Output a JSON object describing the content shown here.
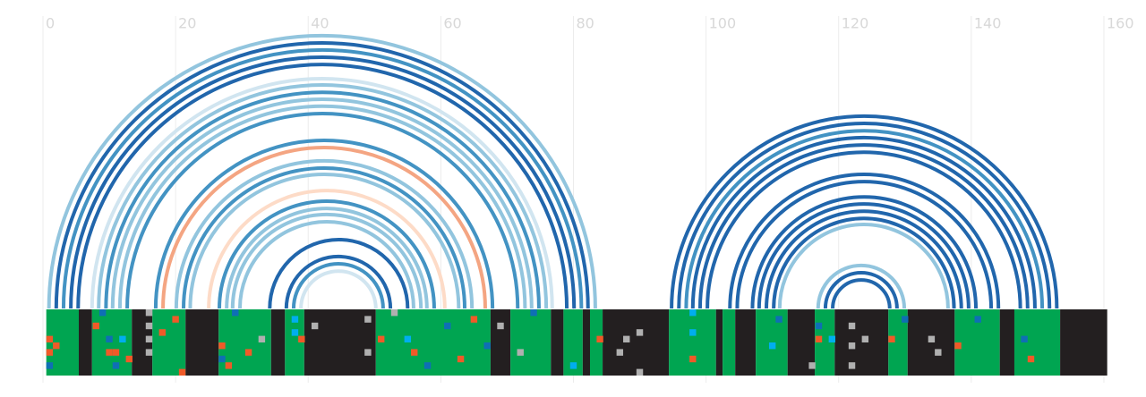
{
  "chart_data": {
    "type": "arc",
    "xlim": [
      -1,
      160.5
    ],
    "xticks": [
      0,
      20,
      40,
      60,
      80,
      100,
      120,
      140,
      160
    ],
    "grid": true,
    "arcs": [
      {
        "from": 0.9,
        "to": 83.3,
        "color": "#92c5de"
      },
      {
        "from": 2.0,
        "to": 82.2,
        "color": "#2166ac"
      },
      {
        "from": 3.1,
        "to": 81.2,
        "color": "#4393c3"
      },
      {
        "from": 4.2,
        "to": 80.1,
        "color": "#2166ac"
      },
      {
        "from": 5.3,
        "to": 79.0,
        "color": "#2166ac"
      },
      {
        "from": 7.4,
        "to": 76.8,
        "color": "#d1e5f0"
      },
      {
        "from": 8.4,
        "to": 75.9,
        "color": "#92c5de"
      },
      {
        "from": 9.5,
        "to": 74.8,
        "color": "#4393c3"
      },
      {
        "from": 10.5,
        "to": 73.7,
        "color": "#92c5de"
      },
      {
        "from": 11.6,
        "to": 72.7,
        "color": "#92c5de"
      },
      {
        "from": 12.7,
        "to": 71.6,
        "color": "#4393c3"
      },
      {
        "from": 17.0,
        "to": 67.8,
        "color": "#4393c3"
      },
      {
        "from": 18.1,
        "to": 66.7,
        "color": "#f4a582"
      },
      {
        "from": 20.1,
        "to": 64.7,
        "color": "#92c5de"
      },
      {
        "from": 21.2,
        "to": 63.6,
        "color": "#4393c3"
      },
      {
        "from": 22.2,
        "to": 62.7,
        "color": "#92c5de"
      },
      {
        "from": 25.0,
        "to": 60.6,
        "color": "#fddbc7"
      },
      {
        "from": 26.6,
        "to": 59.0,
        "color": "#4393c3"
      },
      {
        "from": 27.7,
        "to": 57.9,
        "color": "#92c5de"
      },
      {
        "from": 28.6,
        "to": 57.0,
        "color": "#92c5de"
      },
      {
        "from": 29.7,
        "to": 55.9,
        "color": "#92c5de"
      },
      {
        "from": 34.2,
        "to": 55.0,
        "color": "#2166ac"
      },
      {
        "from": 36.7,
        "to": 52.4,
        "color": "#2166ac"
      },
      {
        "from": 37.8,
        "to": 51.3,
        "color": "#4393c3"
      },
      {
        "from": 38.9,
        "to": 50.2,
        "color": "#d1e5f0"
      },
      {
        "from": 94.8,
        "to": 152.9,
        "color": "#2166ac"
      },
      {
        "from": 95.9,
        "to": 151.8,
        "color": "#2166ac"
      },
      {
        "from": 97.0,
        "to": 150.7,
        "color": "#4393c3"
      },
      {
        "from": 98.0,
        "to": 149.6,
        "color": "#2166ac"
      },
      {
        "from": 99.1,
        "to": 148.5,
        "color": "#2166ac"
      },
      {
        "from": 100.2,
        "to": 147.4,
        "color": "#2166ac"
      },
      {
        "from": 103.6,
        "to": 144.1,
        "color": "#2166ac"
      },
      {
        "from": 104.7,
        "to": 143.0,
        "color": "#2166ac"
      },
      {
        "from": 107.0,
        "to": 140.7,
        "color": "#2166ac"
      },
      {
        "from": 108.0,
        "to": 139.6,
        "color": "#2166ac"
      },
      {
        "from": 109.1,
        "to": 138.5,
        "color": "#2166ac"
      },
      {
        "from": 110.2,
        "to": 137.4,
        "color": "#2166ac"
      },
      {
        "from": 111.1,
        "to": 136.5,
        "color": "#92c5de"
      },
      {
        "from": 116.9,
        "to": 129.9,
        "color": "#92c5de"
      },
      {
        "from": 118.0,
        "to": 128.8,
        "color": "#2166ac"
      },
      {
        "from": 119.1,
        "to": 127.7,
        "color": "#2166ac"
      }
    ],
    "segments": [
      {
        "from": 0.5,
        "to": 5.4,
        "color": "#00a551"
      },
      {
        "from": 5.4,
        "to": 7.4,
        "color": "#231f20"
      },
      {
        "from": 7.4,
        "to": 13.4,
        "color": "#00a551"
      },
      {
        "from": 13.4,
        "to": 16.5,
        "color": "#231f20"
      },
      {
        "from": 16.5,
        "to": 21.5,
        "color": "#00a551"
      },
      {
        "from": 21.5,
        "to": 26.5,
        "color": "#231f20"
      },
      {
        "from": 26.5,
        "to": 34.4,
        "color": "#00a551"
      },
      {
        "from": 34.4,
        "to": 36.5,
        "color": "#231f20"
      },
      {
        "from": 36.5,
        "to": 39.4,
        "color": "#00a551"
      },
      {
        "from": 39.4,
        "to": 50.2,
        "color": "#231f20"
      },
      {
        "from": 50.2,
        "to": 67.5,
        "color": "#00a551"
      },
      {
        "from": 67.5,
        "to": 70.5,
        "color": "#231f20"
      },
      {
        "from": 70.5,
        "to": 76.6,
        "color": "#00a551"
      },
      {
        "from": 76.6,
        "to": 78.5,
        "color": "#231f20"
      },
      {
        "from": 78.5,
        "to": 81.4,
        "color": "#00a551"
      },
      {
        "from": 81.4,
        "to": 82.5,
        "color": "#231f20"
      },
      {
        "from": 82.5,
        "to": 84.4,
        "color": "#00a551"
      },
      {
        "from": 84.4,
        "to": 94.4,
        "color": "#231f20"
      },
      {
        "from": 94.4,
        "to": 101.5,
        "color": "#00a551"
      },
      {
        "from": 101.5,
        "to": 102.5,
        "color": "#231f20"
      },
      {
        "from": 102.5,
        "to": 104.4,
        "color": "#00a551"
      },
      {
        "from": 104.4,
        "to": 107.5,
        "color": "#231f20"
      },
      {
        "from": 107.5,
        "to": 112.3,
        "color": "#00a551"
      },
      {
        "from": 112.3,
        "to": 116.4,
        "color": "#231f20"
      },
      {
        "from": 116.4,
        "to": 119.4,
        "color": "#00a551"
      },
      {
        "from": 119.4,
        "to": 127.5,
        "color": "#231f20"
      },
      {
        "from": 127.5,
        "to": 130.4,
        "color": "#00a551"
      },
      {
        "from": 130.4,
        "to": 137.5,
        "color": "#231f20"
      },
      {
        "from": 137.5,
        "to": 144.3,
        "color": "#00a551"
      },
      {
        "from": 144.3,
        "to": 146.5,
        "color": "#231f20"
      },
      {
        "from": 146.5,
        "to": 153.4,
        "color": "#00a551"
      },
      {
        "from": 153.4,
        "to": 160.5,
        "color": "#231f20"
      }
    ],
    "cells": [
      {
        "x": 0.5,
        "row": 4,
        "color": "#f05a28"
      },
      {
        "x": 0.5,
        "row": 6,
        "color": "#f05a28"
      },
      {
        "x": 0.5,
        "row": 8,
        "color": "#0f6fb5"
      },
      {
        "x": 1.5,
        "row": 5,
        "color": "#f05a28"
      },
      {
        "x": 7.5,
        "row": 2,
        "color": "#f05a28"
      },
      {
        "x": 8.5,
        "row": 0,
        "color": "#0f6fb5"
      },
      {
        "x": 9.5,
        "row": 4,
        "color": "#0f6fb5"
      },
      {
        "x": 9.5,
        "row": 6,
        "color": "#f05a28"
      },
      {
        "x": 10.5,
        "row": 6,
        "color": "#f05a28"
      },
      {
        "x": 10.5,
        "row": 8,
        "color": "#0f6fb5"
      },
      {
        "x": 11.5,
        "row": 4,
        "color": "#00aeef"
      },
      {
        "x": 12.5,
        "row": 7,
        "color": "#f05a28"
      },
      {
        "x": 15.5,
        "row": 0,
        "color": "#b0b0b0"
      },
      {
        "x": 15.5,
        "row": 2,
        "color": "#b0b0b0"
      },
      {
        "x": 15.5,
        "row": 4,
        "color": "#b0b0b0"
      },
      {
        "x": 15.5,
        "row": 6,
        "color": "#b0b0b0"
      },
      {
        "x": 17.5,
        "row": 3,
        "color": "#f05a28"
      },
      {
        "x": 19.5,
        "row": 1,
        "color": "#f05a28"
      },
      {
        "x": 20.5,
        "row": 9,
        "color": "#f05a28"
      },
      {
        "x": 26.5,
        "row": 5,
        "color": "#f05a28"
      },
      {
        "x": 26.5,
        "row": 7,
        "color": "#0f6fb5"
      },
      {
        "x": 27.5,
        "row": 8,
        "color": "#f05a28"
      },
      {
        "x": 28.5,
        "row": 0,
        "color": "#0f6fb5"
      },
      {
        "x": 30.5,
        "row": 6,
        "color": "#f05a28"
      },
      {
        "x": 32.5,
        "row": 4,
        "color": "#b0b0b0"
      },
      {
        "x": 37.5,
        "row": 1,
        "color": "#00aeef"
      },
      {
        "x": 37.5,
        "row": 3,
        "color": "#00aeef"
      },
      {
        "x": 38.5,
        "row": 4,
        "color": "#f05a28"
      },
      {
        "x": 40.5,
        "row": 2,
        "color": "#b0b0b0"
      },
      {
        "x": 48.5,
        "row": 1,
        "color": "#b0b0b0"
      },
      {
        "x": 48.5,
        "row": 6,
        "color": "#b0b0b0"
      },
      {
        "x": 50.5,
        "row": 4,
        "color": "#f05a28"
      },
      {
        "x": 52.5,
        "row": 0,
        "color": "#b0b0b0"
      },
      {
        "x": 54.5,
        "row": 4,
        "color": "#00aeef"
      },
      {
        "x": 55.5,
        "row": 6,
        "color": "#f05a28"
      },
      {
        "x": 57.5,
        "row": 8,
        "color": "#0f6fb5"
      },
      {
        "x": 60.5,
        "row": 2,
        "color": "#0f6fb5"
      },
      {
        "x": 62.5,
        "row": 7,
        "color": "#f05a28"
      },
      {
        "x": 64.5,
        "row": 1,
        "color": "#f05a28"
      },
      {
        "x": 66.5,
        "row": 5,
        "color": "#0f6fb5"
      },
      {
        "x": 68.5,
        "row": 2,
        "color": "#b0b0b0"
      },
      {
        "x": 71.5,
        "row": 6,
        "color": "#b0b0b0"
      },
      {
        "x": 73.5,
        "row": 0,
        "color": "#0f6fb5"
      },
      {
        "x": 79.5,
        "row": 8,
        "color": "#00aeef"
      },
      {
        "x": 83.5,
        "row": 4,
        "color": "#f05a28"
      },
      {
        "x": 87.5,
        "row": 4,
        "color": "#b0b0b0"
      },
      {
        "x": 89.5,
        "row": 3,
        "color": "#b0b0b0"
      },
      {
        "x": 86.5,
        "row": 6,
        "color": "#b0b0b0"
      },
      {
        "x": 89.5,
        "row": 9,
        "color": "#b0b0b0"
      },
      {
        "x": 97.5,
        "row": 0,
        "color": "#00aeef"
      },
      {
        "x": 97.5,
        "row": 3,
        "color": "#00aeef"
      },
      {
        "x": 97.5,
        "row": 7,
        "color": "#f05a28"
      },
      {
        "x": 110.5,
        "row": 1,
        "color": "#0f6fb5"
      },
      {
        "x": 109.5,
        "row": 5,
        "color": "#00aeef"
      },
      {
        "x": 115.5,
        "row": 8,
        "color": "#b0b0b0"
      },
      {
        "x": 116.5,
        "row": 2,
        "color": "#0f6fb5"
      },
      {
        "x": 116.5,
        "row": 4,
        "color": "#f05a28"
      },
      {
        "x": 118.5,
        "row": 4,
        "color": "#00aeef"
      },
      {
        "x": 121.5,
        "row": 2,
        "color": "#b0b0b0"
      },
      {
        "x": 121.5,
        "row": 5,
        "color": "#b0b0b0"
      },
      {
        "x": 121.5,
        "row": 8,
        "color": "#b0b0b0"
      },
      {
        "x": 123.5,
        "row": 4,
        "color": "#b0b0b0"
      },
      {
        "x": 127.5,
        "row": 4,
        "color": "#f05a28"
      },
      {
        "x": 129.5,
        "row": 1,
        "color": "#0f6fb5"
      },
      {
        "x": 133.5,
        "row": 4,
        "color": "#b0b0b0"
      },
      {
        "x": 134.5,
        "row": 6,
        "color": "#b0b0b0"
      },
      {
        "x": 137.5,
        "row": 5,
        "color": "#f05a28"
      },
      {
        "x": 140.5,
        "row": 1,
        "color": "#0f6fb5"
      },
      {
        "x": 147.5,
        "row": 4,
        "color": "#0f6fb5"
      },
      {
        "x": 148.5,
        "row": 7,
        "color": "#f05a28"
      }
    ]
  }
}
